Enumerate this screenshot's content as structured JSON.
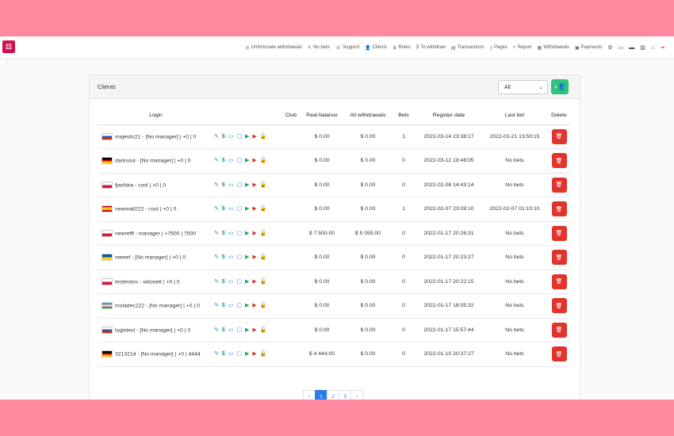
{
  "nav": {
    "logo_icon": "dice-icon",
    "links": [
      {
        "label": "Unfortunate withdrawals",
        "icon": "⊘"
      },
      {
        "label": "No bets",
        "icon": "✎"
      },
      {
        "label": "Support",
        "icon": "☏"
      },
      {
        "label": "Clients",
        "icon": "👤"
      },
      {
        "label": "Roles",
        "icon": "♛"
      },
      {
        "label": "To withdraw",
        "icon": "$"
      },
      {
        "label": "Transactions",
        "icon": "▤"
      },
      {
        "label": "Pages",
        "icon": "▯"
      },
      {
        "label": "Report",
        "icon": "◐"
      },
      {
        "label": "Withdrawals",
        "icon": "▦"
      },
      {
        "label": "Payments",
        "icon": "▣"
      }
    ],
    "icons": [
      {
        "name": "settings-icon",
        "glyph": "⚙"
      },
      {
        "name": "ticket-icon",
        "glyph": "▭"
      },
      {
        "name": "chat-icon",
        "glyph": "▬"
      },
      {
        "name": "image-icon",
        "glyph": "▨"
      },
      {
        "name": "home-icon",
        "glyph": "⌂"
      },
      {
        "name": "logout-icon",
        "glyph": "⇥"
      }
    ]
  },
  "card": {
    "title": "Clients",
    "filter_value": "All",
    "filter_caret": "⌄",
    "add_icon": "+👤"
  },
  "table": {
    "headers": [
      "Login",
      "",
      "Club",
      "Real balance",
      "All withdrawals",
      "Bets",
      "Register date",
      "Last bet",
      "Delete"
    ],
    "rows": [
      {
        "flag": "ru",
        "login": "majestic21 - [No manager] | +0 | 0",
        "club": "",
        "balance": "$ 0.00",
        "withdrawals": "$ 0.00",
        "bets": "1",
        "register": "2022-03-14 23:38:17",
        "last_bet": "2022-03-21 13:50:15"
      },
      {
        "flag": "de",
        "login": "darksoul - [No manager] | +0 | 0",
        "club": "",
        "balance": "$ 0.00",
        "withdrawals": "$ 0.00",
        "bets": "0",
        "register": "2022-03-12 18:48:05",
        "last_bet": "No bets"
      },
      {
        "flag": "pl",
        "login": "fjasfska - cool | +0 | 0",
        "club": "",
        "balance": "$ 0.00",
        "withdrawals": "$ 0.00",
        "bets": "0",
        "register": "2022-02-08 14:43:14",
        "last_bet": "No bets"
      },
      {
        "flag": "es",
        "login": "newmail222 - cool | +0 | 0",
        "club": "",
        "balance": "$ 0.00",
        "withdrawals": "$ 0.00",
        "bets": "1",
        "register": "2022-02-07 23:09:10",
        "last_bet": "2022-02-07 01:10:10"
      },
      {
        "flag": "pl",
        "login": "newrefff - manager | +7500 | 7500",
        "club": "",
        "balance": "$ 7 500.00",
        "withdrawals": "$ 5 055.00",
        "bets": "0",
        "register": "2022-01-17 20:26:31",
        "last_bet": "No bets"
      },
      {
        "flag": "ua",
        "login": "reeeef - [No manager] | +0 | 0",
        "club": "",
        "balance": "$ 0.00",
        "withdrawals": "$ 0.00",
        "bets": "0",
        "register": "2022-01-17 20:23:27",
        "last_bet": "No bets"
      },
      {
        "flag": "pl",
        "login": "testtestov - xidonett | +0 | 0",
        "club": "",
        "balance": "$ 0.00",
        "withdrawals": "$ 0.00",
        "bets": "0",
        "register": "2022-01-17 20:22:15",
        "last_bet": "No bets"
      },
      {
        "flag": "uz",
        "login": "moladec222 - [No manager] | +0 | 0",
        "club": "",
        "balance": "$ 0.00",
        "withdrawals": "$ 0.00",
        "bets": "0",
        "register": "2022-01-17 16:05:32",
        "last_bet": "No bets"
      },
      {
        "flag": "ru",
        "login": "logintest - [No manager] | +0 | 0",
        "club": "",
        "balance": "$ 0.00",
        "withdrawals": "$ 0.00",
        "bets": "0",
        "register": "2022-01-17 15:57:44",
        "last_bet": "No bets"
      },
      {
        "flag": "de",
        "login": "321321d - [No manager] | +0 | 4444",
        "club": "",
        "balance": "$ 4 444.00",
        "withdrawals": "$ 0.00",
        "bets": "0",
        "register": "2022-01-10 20:37:27",
        "last_bet": "No bets"
      }
    ],
    "action_icons": [
      {
        "name": "edit-icon",
        "glyph": "✎",
        "cls": "edit"
      },
      {
        "name": "dollar-icon",
        "glyph": "$",
        "cls": "dollar"
      },
      {
        "name": "calendar-icon",
        "glyph": "▭",
        "cls": "cal"
      },
      {
        "name": "chat-icon",
        "glyph": "▢",
        "cls": "chat"
      },
      {
        "name": "video-icon",
        "glyph": "▶",
        "cls": "vid1"
      },
      {
        "name": "youtube-icon",
        "glyph": "▶",
        "cls": "vid2"
      },
      {
        "name": "lock-icon",
        "glyph": "🔓",
        "cls": "lock"
      }
    ],
    "delete_icon": "🗑"
  },
  "pagination": {
    "prev": "‹",
    "pages": [
      "1",
      "2",
      "3"
    ],
    "active": "1",
    "next": "›"
  },
  "colors": {
    "band": "#ff8aa0",
    "primary": "#2b7de9",
    "success": "#2ec27e",
    "danger": "#e0342d"
  }
}
